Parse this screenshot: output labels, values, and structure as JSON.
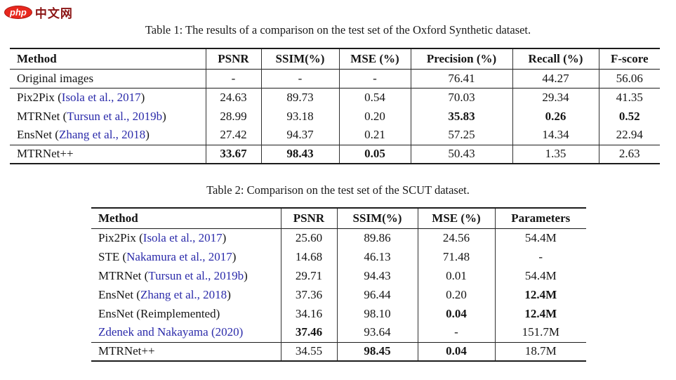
{
  "logo": {
    "badge_text": "php",
    "site_name": "中文网"
  },
  "colors": {
    "citation_link": "#2b2baa",
    "logo_badge_red": "#e8281e",
    "logo_text_red": "#8b1515"
  },
  "table1": {
    "caption": "Table 1: The results of a comparison on the test set of the Oxford Synthetic dataset.",
    "headers": [
      "Method",
      "PSNR",
      "SSIM(%)",
      "MSE (%)",
      "Precision (%)",
      "Recall (%)",
      "F-score"
    ],
    "rows": [
      {
        "method": {
          "pre": "Original images",
          "cite": "",
          "post": ""
        },
        "rule_below": true,
        "values": [
          {
            "v": "-",
            "b": false
          },
          {
            "v": "-",
            "b": false
          },
          {
            "v": "-",
            "b": false
          },
          {
            "v": "76.41",
            "b": false
          },
          {
            "v": "44.27",
            "b": false
          },
          {
            "v": "56.06",
            "b": false
          }
        ]
      },
      {
        "method": {
          "pre": "Pix2Pix (",
          "cite": "Isola et al., 2017",
          "post": ")"
        },
        "rule_below": false,
        "values": [
          {
            "v": "24.63",
            "b": false
          },
          {
            "v": "89.73",
            "b": false
          },
          {
            "v": "0.54",
            "b": false
          },
          {
            "v": "70.03",
            "b": false
          },
          {
            "v": "29.34",
            "b": false
          },
          {
            "v": "41.35",
            "b": false
          }
        ]
      },
      {
        "method": {
          "pre": "MTRNet (",
          "cite": "Tursun et al., 2019b",
          "post": ")"
        },
        "rule_below": false,
        "values": [
          {
            "v": "28.99",
            "b": false
          },
          {
            "v": "93.18",
            "b": false
          },
          {
            "v": "0.20",
            "b": false
          },
          {
            "v": "35.83",
            "b": true
          },
          {
            "v": "0.26",
            "b": true
          },
          {
            "v": "0.52",
            "b": true
          }
        ]
      },
      {
        "method": {
          "pre": "EnsNet (",
          "cite": "Zhang et al., 2018",
          "post": ")"
        },
        "rule_below": true,
        "values": [
          {
            "v": "27.42",
            "b": false
          },
          {
            "v": "94.37",
            "b": false
          },
          {
            "v": "0.21",
            "b": false
          },
          {
            "v": "57.25",
            "b": false
          },
          {
            "v": "14.34",
            "b": false
          },
          {
            "v": "22.94",
            "b": false
          }
        ]
      },
      {
        "method": {
          "pre": "MTRNet++",
          "cite": "",
          "post": ""
        },
        "rule_below": false,
        "values": [
          {
            "v": "33.67",
            "b": true
          },
          {
            "v": "98.43",
            "b": true
          },
          {
            "v": "0.05",
            "b": true
          },
          {
            "v": "50.43",
            "b": false
          },
          {
            "v": "1.35",
            "b": false
          },
          {
            "v": "2.63",
            "b": false
          }
        ]
      }
    ]
  },
  "table2": {
    "caption": "Table 2: Comparison on the test set of the SCUT dataset.",
    "headers": [
      "Method",
      "PSNR",
      "SSIM(%)",
      "MSE (%)",
      "Parameters"
    ],
    "rows": [
      {
        "method": {
          "pre": "Pix2Pix (",
          "cite": "Isola et al., 2017",
          "post": ")"
        },
        "rule_below": false,
        "values": [
          {
            "v": "25.60",
            "b": false
          },
          {
            "v": "89.86",
            "b": false
          },
          {
            "v": "24.56",
            "b": false
          },
          {
            "v": "54.4M",
            "b": false
          }
        ]
      },
      {
        "method": {
          "pre": "STE (",
          "cite": "Nakamura et al., 2017",
          "post": ")"
        },
        "rule_below": false,
        "values": [
          {
            "v": "14.68",
            "b": false
          },
          {
            "v": "46.13",
            "b": false
          },
          {
            "v": "71.48",
            "b": false
          },
          {
            "v": "-",
            "b": false
          }
        ]
      },
      {
        "method": {
          "pre": "MTRNet (",
          "cite": "Tursun et al., 2019b",
          "post": ")"
        },
        "rule_below": false,
        "values": [
          {
            "v": "29.71",
            "b": false
          },
          {
            "v": "94.43",
            "b": false
          },
          {
            "v": "0.01",
            "b": false
          },
          {
            "v": "54.4M",
            "b": false
          }
        ]
      },
      {
        "method": {
          "pre": "EnsNet (",
          "cite": "Zhang et al., 2018",
          "post": ")"
        },
        "rule_below": false,
        "values": [
          {
            "v": "37.36",
            "b": false
          },
          {
            "v": "96.44",
            "b": false
          },
          {
            "v": "0.20",
            "b": false
          },
          {
            "v": "12.4M",
            "b": true
          }
        ]
      },
      {
        "method": {
          "pre": "EnsNet (Reimplemented)",
          "cite": "",
          "post": ""
        },
        "rule_below": false,
        "values": [
          {
            "v": "34.16",
            "b": false
          },
          {
            "v": "98.10",
            "b": false
          },
          {
            "v": "0.04",
            "b": true
          },
          {
            "v": "12.4M",
            "b": true
          }
        ]
      },
      {
        "method": {
          "pre": "",
          "cite": "Zdenek and Nakayama (2020)",
          "post": ""
        },
        "rule_below": true,
        "values": [
          {
            "v": "37.46",
            "b": true
          },
          {
            "v": "93.64",
            "b": false
          },
          {
            "v": "-",
            "b": false
          },
          {
            "v": "151.7M",
            "b": false
          }
        ]
      },
      {
        "method": {
          "pre": "MTRNet++",
          "cite": "",
          "post": ""
        },
        "rule_below": false,
        "values": [
          {
            "v": "34.55",
            "b": false
          },
          {
            "v": "98.45",
            "b": true
          },
          {
            "v": "0.04",
            "b": true
          },
          {
            "v": "18.7M",
            "b": false
          }
        ]
      }
    ]
  }
}
